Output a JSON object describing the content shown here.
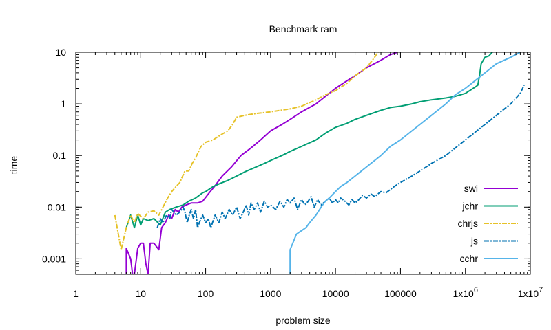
{
  "chart_data": {
    "type": "line",
    "title": "Benchmark ram",
    "xlabel": "problem size",
    "ylabel": "time",
    "x_scale": "log",
    "y_scale": "log",
    "xlim": [
      1,
      10000000
    ],
    "ylim": [
      0.0005,
      10
    ],
    "grid": false,
    "legend_position": "bottom-right",
    "x_ticks": [
      {
        "value": 1,
        "label": "1"
      },
      {
        "value": 10,
        "label": "10"
      },
      {
        "value": 100,
        "label": "100"
      },
      {
        "value": 1000,
        "label": "1000"
      },
      {
        "value": 10000,
        "label": "10000"
      },
      {
        "value": 100000,
        "label": "100000"
      },
      {
        "value": 1000000,
        "label": "1x10",
        "sup": "6"
      },
      {
        "value": 10000000,
        "label": "1x10",
        "sup": "7"
      }
    ],
    "y_ticks": [
      {
        "value": 0.001,
        "label": "0.001"
      },
      {
        "value": 0.01,
        "label": "0.01"
      },
      {
        "value": 0.1,
        "label": "0.1"
      },
      {
        "value": 1,
        "label": "1"
      },
      {
        "value": 10,
        "label": "10"
      }
    ],
    "series": [
      {
        "name": "swi",
        "color": "#9400d3",
        "dash": "solid",
        "points": [
          [
            6,
            0.0005
          ],
          [
            6,
            0.0016
          ],
          [
            7,
            0.001
          ],
          [
            7.5,
            0.0005
          ],
          [
            8,
            0.0005
          ],
          [
            9,
            0.0016
          ],
          [
            10,
            0.002
          ],
          [
            11,
            0.002
          ],
          [
            12,
            0.0008
          ],
          [
            13,
            0.0005
          ],
          [
            14,
            0.002
          ],
          [
            16,
            0.002
          ],
          [
            19,
            0.0015
          ],
          [
            21,
            0.004
          ],
          [
            24,
            0.005
          ],
          [
            27,
            0.007
          ],
          [
            30,
            0.006
          ],
          [
            34,
            0.009
          ],
          [
            38,
            0.008
          ],
          [
            43,
            0.01
          ],
          [
            50,
            0.011
          ],
          [
            60,
            0.012
          ],
          [
            75,
            0.012
          ],
          [
            90,
            0.013
          ],
          [
            110,
            0.018
          ],
          [
            140,
            0.026
          ],
          [
            180,
            0.04
          ],
          [
            250,
            0.06
          ],
          [
            350,
            0.1
          ],
          [
            500,
            0.14
          ],
          [
            700,
            0.2
          ],
          [
            1000,
            0.3
          ],
          [
            1500,
            0.4
          ],
          [
            2000,
            0.5
          ],
          [
            3000,
            0.7
          ],
          [
            5000,
            1.0
          ],
          [
            7000,
            1.4
          ],
          [
            10000,
            2.0
          ],
          [
            15000,
            2.8
          ],
          [
            20000,
            3.5
          ],
          [
            30000,
            5.0
          ],
          [
            50000,
            7.0
          ],
          [
            70000,
            9.0
          ],
          [
            90000,
            10.0
          ]
        ]
      },
      {
        "name": "jchr",
        "color": "#009e73",
        "dash": "solid",
        "points": [
          [
            6,
            0.004
          ],
          [
            7,
            0.007
          ],
          [
            8,
            0.004
          ],
          [
            9,
            0.007
          ],
          [
            10,
            0.0045
          ],
          [
            11,
            0.006
          ],
          [
            13,
            0.0055
          ],
          [
            16,
            0.006
          ],
          [
            20,
            0.0045
          ],
          [
            24,
            0.008
          ],
          [
            28,
            0.009
          ],
          [
            35,
            0.01
          ],
          [
            45,
            0.011
          ],
          [
            55,
            0.013
          ],
          [
            70,
            0.015
          ],
          [
            90,
            0.019
          ],
          [
            100,
            0.02
          ],
          [
            130,
            0.025
          ],
          [
            170,
            0.029
          ],
          [
            220,
            0.033
          ],
          [
            300,
            0.04
          ],
          [
            400,
            0.048
          ],
          [
            600,
            0.06
          ],
          [
            800,
            0.07
          ],
          [
            1000,
            0.08
          ],
          [
            1500,
            0.1
          ],
          [
            2000,
            0.12
          ],
          [
            3000,
            0.15
          ],
          [
            5000,
            0.2
          ],
          [
            7000,
            0.27
          ],
          [
            10000,
            0.35
          ],
          [
            15000,
            0.42
          ],
          [
            20000,
            0.5
          ],
          [
            30000,
            0.6
          ],
          [
            50000,
            0.75
          ],
          [
            70000,
            0.85
          ],
          [
            100000,
            0.9
          ],
          [
            150000,
            1.0
          ],
          [
            200000,
            1.1
          ],
          [
            300000,
            1.2
          ],
          [
            500000,
            1.3
          ],
          [
            700000,
            1.4
          ],
          [
            1000000,
            1.6
          ],
          [
            1400000,
            2.1
          ],
          [
            1550000,
            2.3
          ],
          [
            1650000,
            3.5
          ],
          [
            1750000,
            6.0
          ],
          [
            2000000,
            8.0
          ],
          [
            2300000,
            8.5
          ],
          [
            2600000,
            10.0
          ]
        ]
      },
      {
        "name": "chrjs",
        "color": "#e6c229",
        "dash": "dashdot",
        "points": [
          [
            4,
            0.007
          ],
          [
            5,
            0.0015
          ],
          [
            6,
            0.004
          ],
          [
            7,
            0.007
          ],
          [
            8,
            0.005
          ],
          [
            9,
            0.0075
          ],
          [
            11,
            0.006
          ],
          [
            13,
            0.008
          ],
          [
            16,
            0.0085
          ],
          [
            19,
            0.007
          ],
          [
            22,
            0.01
          ],
          [
            26,
            0.015
          ],
          [
            30,
            0.02
          ],
          [
            35,
            0.025
          ],
          [
            40,
            0.03
          ],
          [
            48,
            0.05
          ],
          [
            55,
            0.05
          ],
          [
            62,
            0.07
          ],
          [
            70,
            0.09
          ],
          [
            85,
            0.15
          ],
          [
            100,
            0.18
          ],
          [
            130,
            0.2
          ],
          [
            170,
            0.25
          ],
          [
            220,
            0.3
          ],
          [
            260,
            0.4
          ],
          [
            300,
            0.55
          ],
          [
            400,
            0.6
          ],
          [
            600,
            0.65
          ],
          [
            1000,
            0.7
          ],
          [
            2000,
            0.8
          ],
          [
            3000,
            0.9
          ],
          [
            5000,
            1.2
          ],
          [
            7000,
            1.5
          ],
          [
            10000,
            1.8
          ],
          [
            15000,
            2.5
          ],
          [
            20000,
            3.5
          ],
          [
            30000,
            5.0
          ],
          [
            40000,
            8.0
          ],
          [
            45000,
            10.0
          ]
        ]
      },
      {
        "name": "js",
        "color": "#0072b2",
        "dash": "dashdot",
        "points": [
          [
            18,
            0.004
          ],
          [
            20,
            0.006
          ],
          [
            22,
            0.005
          ],
          [
            25,
            0.007
          ],
          [
            28,
            0.006
          ],
          [
            30,
            0.009
          ],
          [
            35,
            0.007
          ],
          [
            40,
            0.008
          ],
          [
            45,
            0.01
          ],
          [
            48,
            0.008
          ],
          [
            52,
            0.005
          ],
          [
            56,
            0.007
          ],
          [
            60,
            0.009
          ],
          [
            65,
            0.006
          ],
          [
            70,
            0.009
          ],
          [
            75,
            0.004
          ],
          [
            80,
            0.005
          ],
          [
            90,
            0.007
          ],
          [
            100,
            0.005
          ],
          [
            110,
            0.006
          ],
          [
            120,
            0.004
          ],
          [
            140,
            0.007
          ],
          [
            160,
            0.005
          ],
          [
            180,
            0.008
          ],
          [
            200,
            0.006
          ],
          [
            230,
            0.009
          ],
          [
            260,
            0.007
          ],
          [
            300,
            0.01
          ],
          [
            340,
            0.006
          ],
          [
            380,
            0.008
          ],
          [
            420,
            0.011
          ],
          [
            460,
            0.007
          ],
          [
            500,
            0.012
          ],
          [
            560,
            0.009
          ],
          [
            630,
            0.012
          ],
          [
            700,
            0.008
          ],
          [
            800,
            0.013
          ],
          [
            900,
            0.01
          ],
          [
            1000,
            0.011
          ],
          [
            1200,
            0.009
          ],
          [
            1400,
            0.013
          ],
          [
            1600,
            0.01
          ],
          [
            1800,
            0.014
          ],
          [
            2000,
            0.012
          ],
          [
            2300,
            0.015
          ],
          [
            2600,
            0.009
          ],
          [
            3000,
            0.014
          ],
          [
            3400,
            0.011
          ],
          [
            3800,
            0.013
          ],
          [
            4200,
            0.016
          ],
          [
            4700,
            0.01
          ],
          [
            5300,
            0.014
          ],
          [
            6000,
            0.011
          ],
          [
            7000,
            0.013
          ],
          [
            8000,
            0.015
          ],
          [
            9000,
            0.012
          ],
          [
            10000,
            0.014
          ],
          [
            11000,
            0.012
          ],
          [
            12000,
            0.015
          ],
          [
            14000,
            0.013
          ],
          [
            16000,
            0.011
          ],
          [
            18000,
            0.014
          ],
          [
            20000,
            0.012
          ],
          [
            23000,
            0.014
          ],
          [
            26000,
            0.017
          ],
          [
            30000,
            0.015
          ],
          [
            35000,
            0.018
          ],
          [
            40000,
            0.016
          ],
          [
            50000,
            0.02
          ],
          [
            60000,
            0.019
          ],
          [
            70000,
            0.022
          ],
          [
            80000,
            0.025
          ],
          [
            100000,
            0.03
          ],
          [
            150000,
            0.04
          ],
          [
            200000,
            0.05
          ],
          [
            300000,
            0.07
          ],
          [
            500000,
            0.1
          ],
          [
            700000,
            0.14
          ],
          [
            1000000,
            0.2
          ],
          [
            1500000,
            0.3
          ],
          [
            2000000,
            0.4
          ],
          [
            3000000,
            0.6
          ],
          [
            5000000,
            1.0
          ],
          [
            7000000,
            1.6
          ],
          [
            8000000,
            2.3
          ]
        ]
      },
      {
        "name": "cchr",
        "color": "#56b4e9",
        "dash": "solid",
        "points": [
          [
            2000,
            0.0005
          ],
          [
            2000,
            0.0015
          ],
          [
            2200,
            0.002
          ],
          [
            2500,
            0.003
          ],
          [
            3000,
            0.0035
          ],
          [
            3500,
            0.004
          ],
          [
            4000,
            0.005
          ],
          [
            5000,
            0.007
          ],
          [
            6000,
            0.01
          ],
          [
            7000,
            0.013
          ],
          [
            8000,
            0.015
          ],
          [
            10000,
            0.02
          ],
          [
            12000,
            0.025
          ],
          [
            15000,
            0.03
          ],
          [
            20000,
            0.04
          ],
          [
            25000,
            0.05
          ],
          [
            30000,
            0.06
          ],
          [
            40000,
            0.08
          ],
          [
            50000,
            0.1
          ],
          [
            70000,
            0.15
          ],
          [
            100000,
            0.2
          ],
          [
            150000,
            0.3
          ],
          [
            200000,
            0.4
          ],
          [
            300000,
            0.6
          ],
          [
            500000,
            1.0
          ],
          [
            700000,
            1.5
          ],
          [
            1000000,
            2.0
          ],
          [
            1500000,
            3.0
          ],
          [
            2000000,
            4.0
          ],
          [
            3000000,
            6.0
          ],
          [
            5000000,
            8.0
          ],
          [
            7000000,
            10.0
          ]
        ]
      }
    ]
  }
}
